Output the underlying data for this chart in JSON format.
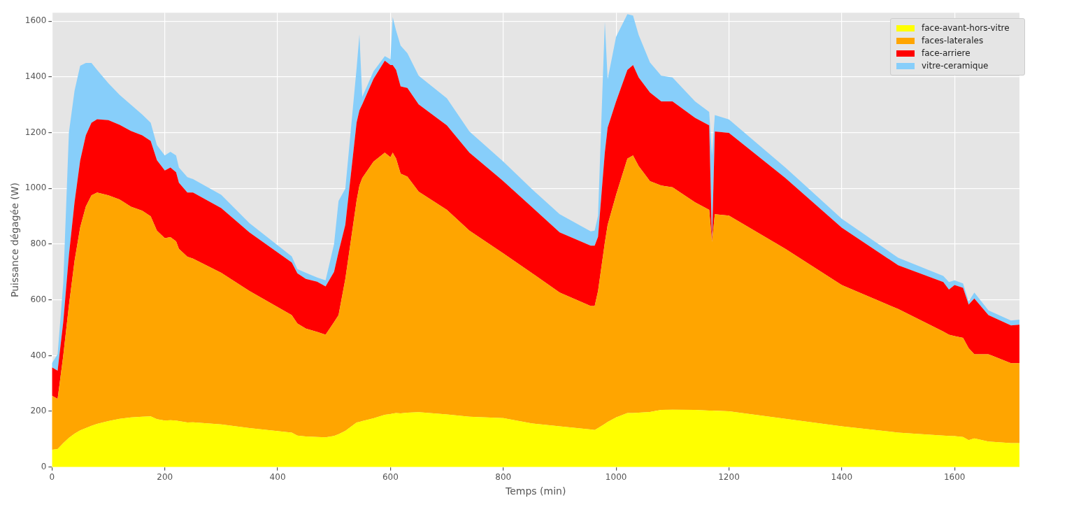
{
  "chart_data": {
    "type": "area",
    "stacked": true,
    "xlabel": "Temps (min)",
    "ylabel": "Puissance dégagée (W)",
    "x": [
      0,
      10,
      20,
      30,
      40,
      50,
      60,
      70,
      80,
      100,
      120,
      140,
      160,
      175,
      186,
      200,
      210,
      220,
      225,
      240,
      250,
      300,
      350,
      425,
      435,
      450,
      470,
      485,
      500,
      508,
      520,
      540,
      545,
      550,
      570,
      590,
      600,
      604,
      610,
      618,
      630,
      650,
      700,
      740,
      800,
      850,
      900,
      955,
      962,
      968,
      980,
      985,
      1000,
      1020,
      1030,
      1040,
      1060,
      1080,
      1100,
      1140,
      1165,
      1170,
      1175,
      1200,
      1300,
      1400,
      1500,
      1580,
      1590,
      1600,
      1615,
      1625,
      1635,
      1660,
      1700,
      1715
    ],
    "series": [
      {
        "name": "face-avant-hors-vitre",
        "color": "#ffff00",
        "values": [
          62,
          65,
          86,
          105,
          120,
          132,
          140,
          148,
          155,
          165,
          173,
          178,
          181,
          182,
          172,
          167,
          168,
          167,
          165,
          160,
          161,
          153,
          140,
          124,
          113,
          110,
          108,
          107,
          112,
          118,
          130,
          160,
          162,
          165,
          175,
          188,
          190,
          192,
          194,
          193,
          195,
          197,
          189,
          181,
          176,
          157,
          146,
          135,
          133,
          140,
          155,
          162,
          178,
          194,
          194,
          195,
          198,
          205,
          206,
          205,
          203,
          203,
          202,
          200,
          173,
          146,
          124,
          113,
          112,
          111,
          108,
          97,
          103,
          92,
          86,
          86
        ]
      },
      {
        "name": "faces-laterales",
        "color": "#ffa500",
        "values": [
          194,
          180,
          314,
          475,
          620,
          728,
          795,
          827,
          830,
          810,
          787,
          756,
          739,
          718,
          676,
          654,
          657,
          643,
          618,
          595,
          587,
          544,
          492,
          421,
          402,
          387,
          377,
          368,
          408,
          427,
          545,
          796,
          848,
          872,
          921,
          940,
          922,
          936,
          913,
          860,
          847,
          791,
          734,
          667,
          591,
          540,
          480,
          443,
          445,
          492,
          650,
          707,
          799,
          913,
          924,
          885,
          828,
          805,
          798,
          745,
          720,
          605,
          705,
          702,
          610,
          507,
          443,
          373,
          363,
          359,
          356,
          330,
          302,
          313,
          287,
          287
        ]
      },
      {
        "name": "face-arriere",
        "color": "#ff0000",
        "values": [
          102,
          101,
          120,
          180,
          210,
          240,
          255,
          260,
          263,
          270,
          268,
          272,
          270,
          270,
          253,
          243,
          250,
          248,
          237,
          230,
          237,
          232,
          210,
          189,
          180,
          178,
          180,
          173,
          180,
          227,
          194,
          280,
          270,
          264,
          297,
          330,
          330,
          314,
          318,
          313,
          318,
          313,
          303,
          280,
          259,
          237,
          216,
          216,
          216,
          194,
          323,
          349,
          335,
          318,
          324,
          318,
          318,
          302,
          308,
          303,
          303,
          0,
          297,
          297,
          254,
          206,
          157,
          178,
          162,
          183,
          179,
          156,
          200,
          140,
          135,
          138
        ]
      },
      {
        "name": "vitre-ceramique",
        "color": "#87cefa",
        "values": [
          15,
          59,
          140,
          440,
          400,
          340,
          260,
          215,
          177,
          132,
          107,
          94,
          75,
          65,
          54,
          54,
          56,
          60,
          55,
          55,
          48,
          48,
          33,
          22,
          15,
          22,
          15,
          22,
          100,
          183,
          130,
          195,
          272,
          27,
          27,
          16,
          21,
          172,
          141,
          146,
          125,
          103,
          97,
          76,
          70,
          65,
          65,
          52,
          54,
          76,
          470,
          173,
          232,
          200,
          178,
          152,
          108,
          92,
          86,
          59,
          48,
          310,
          59,
          48,
          38,
          32,
          27,
          22,
          27,
          17,
          16,
          11,
          21,
          17,
          18,
          18
        ]
      }
    ],
    "xlim": [
      0,
      1715
    ],
    "ylim": [
      0,
      1630
    ],
    "xticks": [
      0,
      200,
      400,
      600,
      800,
      1000,
      1200,
      1400,
      1600
    ],
    "yticks": [
      0,
      200,
      400,
      600,
      800,
      1000,
      1200,
      1400,
      1600
    ],
    "grid": true,
    "legend": "top right"
  }
}
